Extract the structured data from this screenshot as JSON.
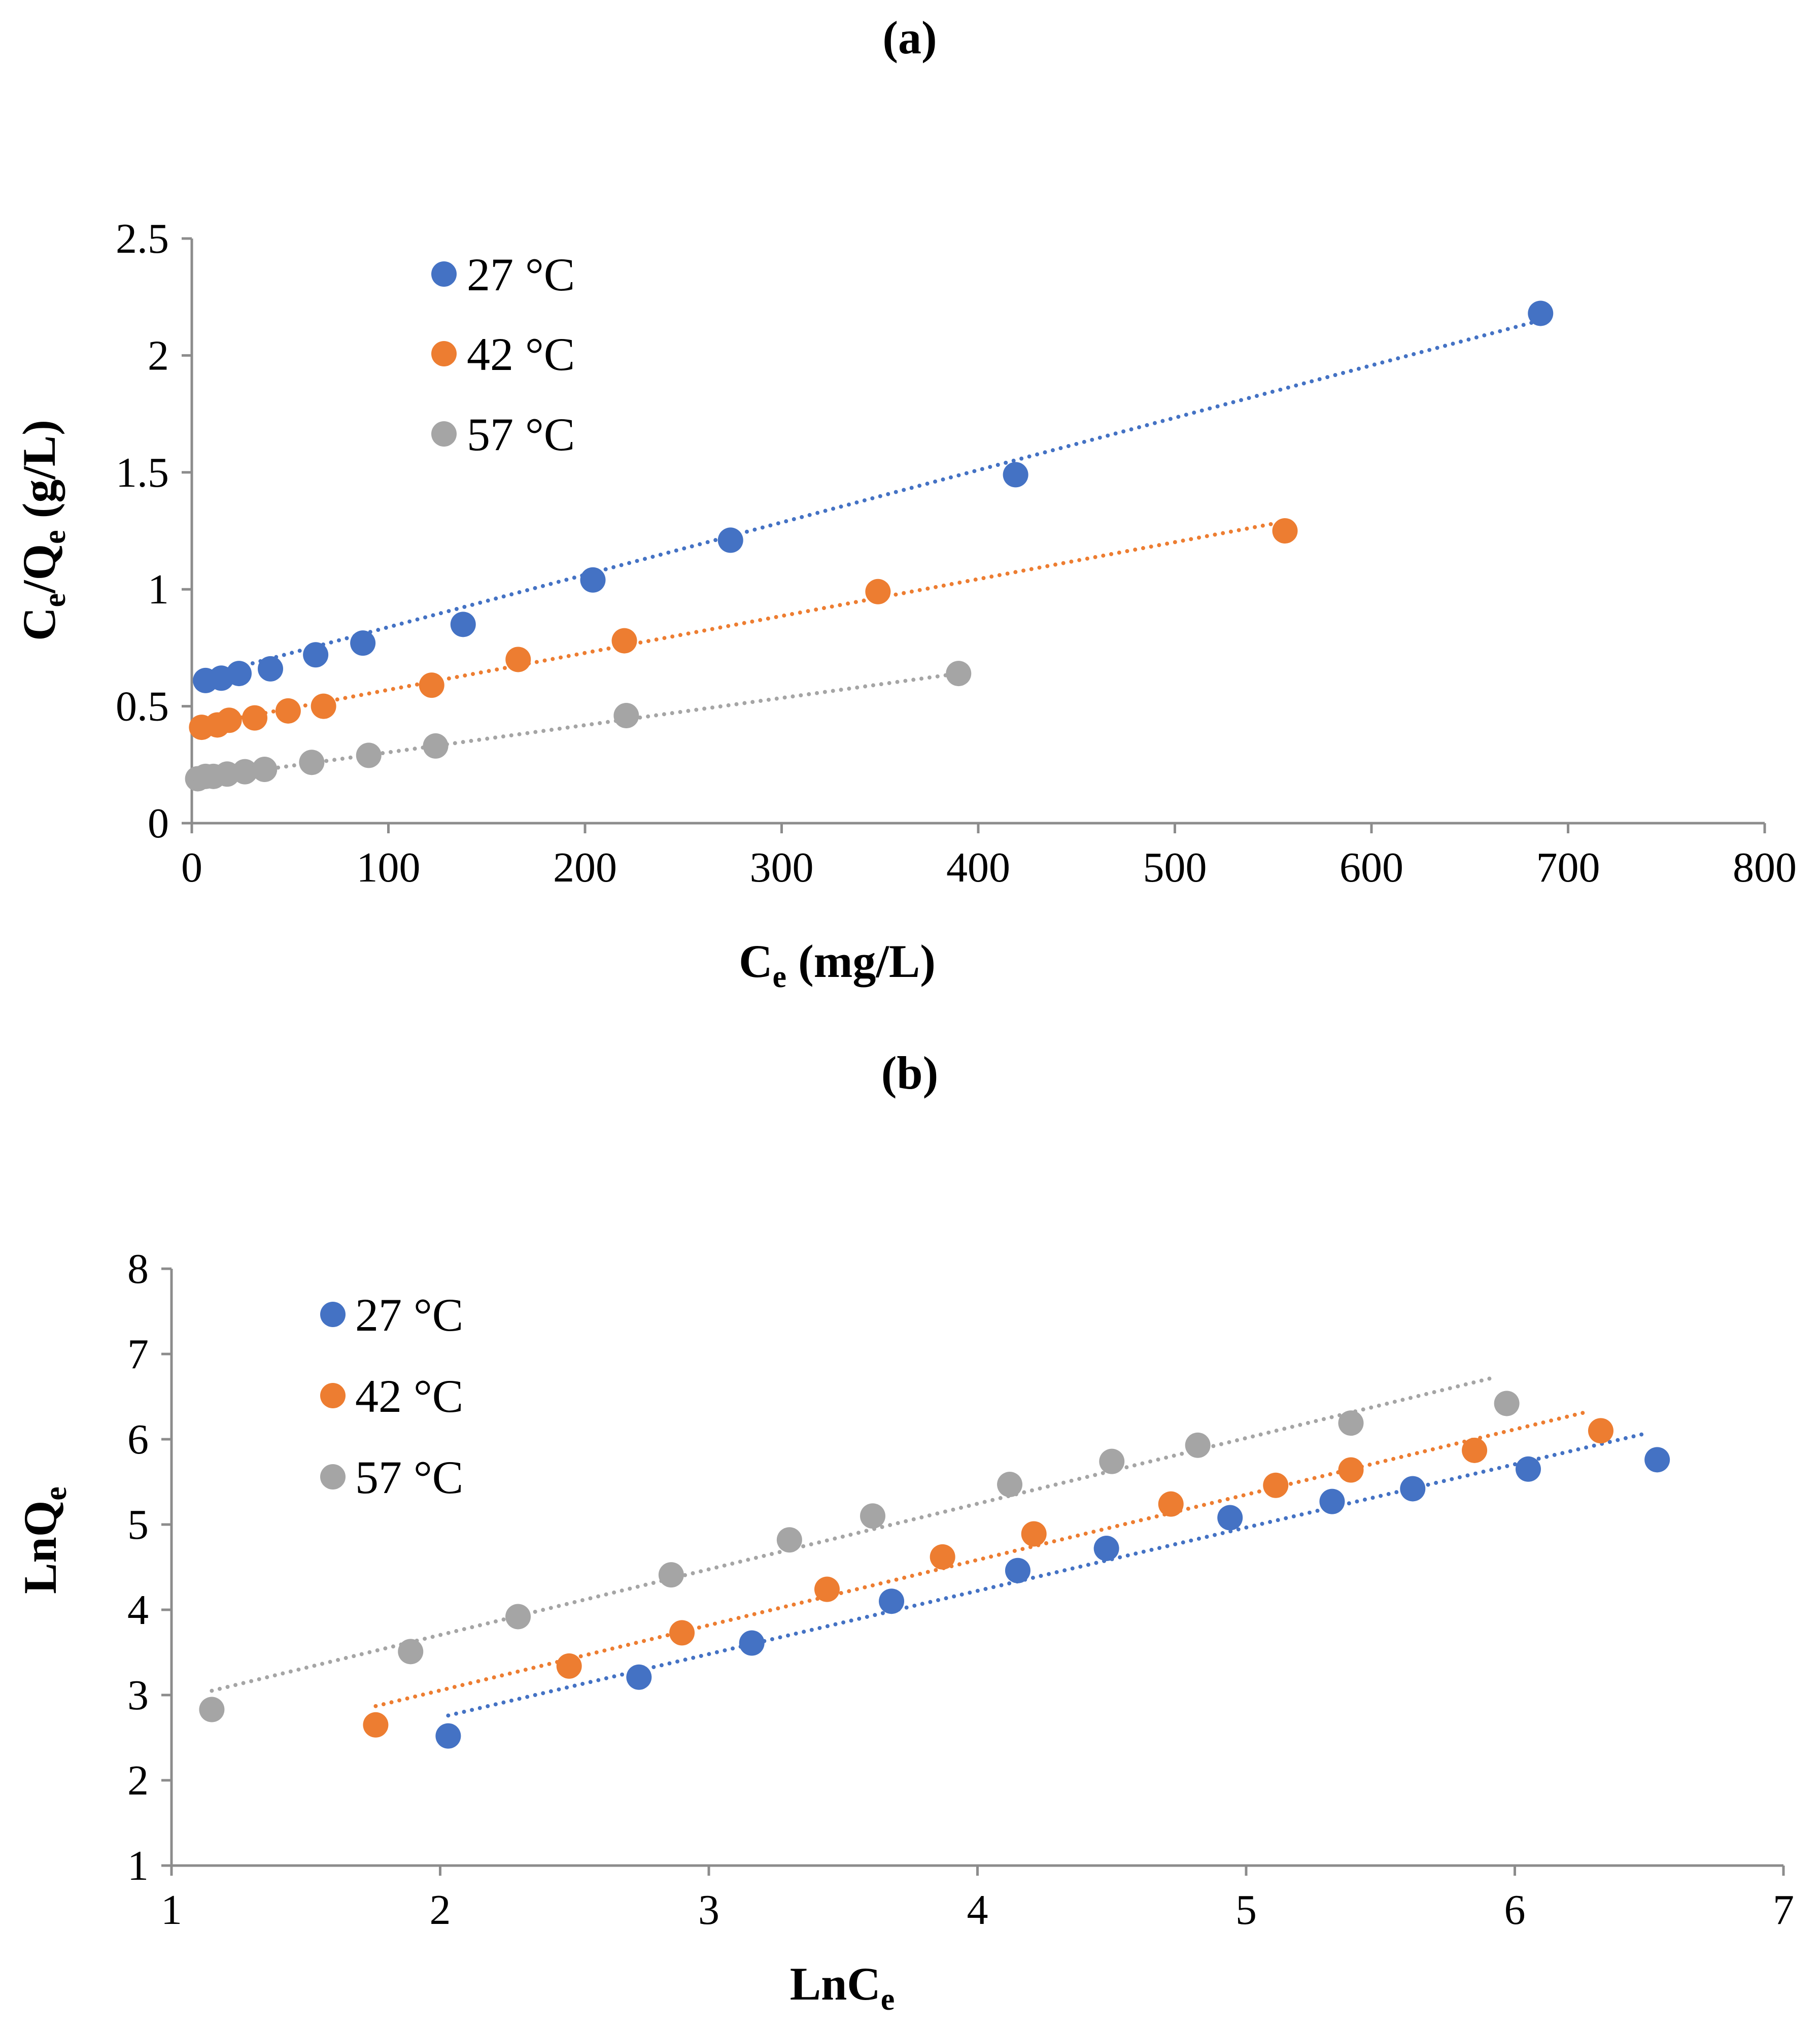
{
  "chart_data": [
    {
      "type": "scatter",
      "panel_label": "(a)",
      "xlabel": {
        "main": "C",
        "sub": "e",
        "rest": " (mg/L)"
      },
      "ylabel": {
        "p1": "C",
        "s1": "e",
        "p2": "/Q",
        "s2": "e",
        "p3": " (g/L)"
      },
      "xlim": [
        0,
        800
      ],
      "ylim": [
        0,
        2.5
      ],
      "xticks": [
        "0",
        "100",
        "200",
        "300",
        "400",
        "500",
        "600",
        "700",
        "800"
      ],
      "yticks": [
        "0",
        "0.5",
        "1",
        "1.5",
        "2",
        "2.5"
      ],
      "legend_position": "top-left",
      "series": [
        {
          "name": "27 °C",
          "color": "#4472C4",
          "x": [
            7,
            15,
            24,
            40,
            63,
            87,
            138,
            204,
            274,
            419,
            686
          ],
          "y": [
            0.61,
            0.62,
            0.64,
            0.66,
            0.72,
            0.77,
            0.85,
            1.04,
            1.21,
            1.49,
            2.18
          ],
          "trendline": {
            "x": [
              7,
              686
            ],
            "y": [
              0.63,
              2.15
            ]
          }
        },
        {
          "name": "42 °C",
          "color": "#ED7D31",
          "x": [
            5,
            13,
            19,
            32,
            49,
            67,
            122,
            166,
            220,
            349,
            556
          ],
          "y": [
            0.41,
            0.42,
            0.44,
            0.45,
            0.48,
            0.5,
            0.59,
            0.7,
            0.78,
            0.99,
            1.25
          ],
          "trendline": {
            "x": [
              5,
              556
            ],
            "y": [
              0.42,
              1.29
            ]
          }
        },
        {
          "name": "57 °C",
          "color": "#A5A5A5",
          "x": [
            3,
            7,
            11,
            18,
            27,
            37,
            61,
            90,
            124,
            221,
            390
          ],
          "y": [
            0.19,
            0.2,
            0.2,
            0.21,
            0.22,
            0.23,
            0.26,
            0.29,
            0.33,
            0.46,
            0.64
          ],
          "trendline": {
            "x": [
              3,
              390
            ],
            "y": [
              0.19,
              0.64
            ]
          }
        }
      ]
    },
    {
      "type": "scatter",
      "panel_label": "(b)",
      "xlabel": {
        "main": "LnC",
        "sub": "e",
        "rest": ""
      },
      "ylabel": {
        "p1": "LnQ",
        "s1": "e",
        "p2": "",
        "s2": "",
        "p3": ""
      },
      "xlim": [
        1,
        7
      ],
      "ylim": [
        1,
        8
      ],
      "xticks": [
        "1",
        "2",
        "3",
        "4",
        "5",
        "6",
        "7"
      ],
      "yticks": [
        "1",
        "2",
        "3",
        "4",
        "5",
        "6",
        "7",
        "8"
      ],
      "legend_position": "top-left",
      "series": [
        {
          "name": "27 °C",
          "color": "#4472C4",
          "x": [
            2.03,
            2.74,
            3.16,
            3.68,
            4.15,
            4.48,
            4.94,
            5.32,
            5.62,
            6.05,
            6.53
          ],
          "y": [
            2.52,
            3.21,
            3.61,
            4.1,
            4.46,
            4.72,
            5.08,
            5.27,
            5.42,
            5.65,
            5.76
          ],
          "trendline": {
            "x": [
              2.03,
              6.49
            ],
            "y": [
              2.76,
              6.07
            ]
          }
        },
        {
          "name": "42 °C",
          "color": "#ED7D31",
          "x": [
            1.76,
            2.48,
            2.9,
            3.44,
            3.87,
            4.21,
            4.72,
            5.11,
            5.39,
            5.85,
            6.32
          ],
          "y": [
            2.65,
            3.34,
            3.73,
            4.24,
            4.62,
            4.89,
            5.24,
            5.46,
            5.64,
            5.87,
            6.1
          ],
          "trendline": {
            "x": [
              1.76,
              6.28
            ],
            "y": [
              2.87,
              6.33
            ]
          }
        },
        {
          "name": "57 °C",
          "color": "#A5A5A5",
          "x": [
            1.15,
            1.89,
            2.29,
            2.86,
            3.3,
            3.61,
            4.12,
            4.5,
            4.82,
            5.39,
            5.97
          ],
          "y": [
            2.83,
            3.51,
            3.92,
            4.41,
            4.82,
            5.1,
            5.47,
            5.74,
            5.93,
            6.19,
            6.42
          ],
          "trendline": {
            "x": [
              1.15,
              5.93
            ],
            "y": [
              3.05,
              6.73
            ]
          }
        }
      ]
    }
  ]
}
